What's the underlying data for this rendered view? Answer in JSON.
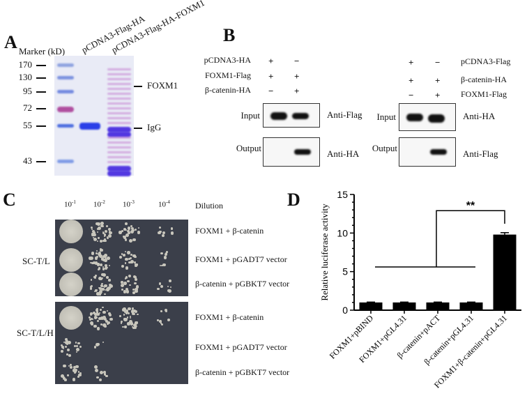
{
  "panels": {
    "a": {
      "label": "A",
      "marker_header": "Marker (kD)",
      "lanes": [
        "pCDNA3-Flag-HA",
        "pCDNA3-Flag-HA-FOXM1"
      ],
      "markers": [
        "170",
        "130",
        "95",
        "72",
        "55",
        "43"
      ],
      "bands": [
        "FOXM1",
        "IgG"
      ]
    },
    "b": {
      "label": "B",
      "left": {
        "rows": [
          {
            "name": "pCDNA3-HA",
            "lane1": "+",
            "lane2": "−"
          },
          {
            "name": "FOXM1-Flag",
            "lane1": "+",
            "lane2": "+"
          },
          {
            "name": "β-catenin-HA",
            "lane1": "−",
            "lane2": "+"
          }
        ],
        "input_label": "Input",
        "output_label": "Output",
        "input_antibody": "Anti-Flag",
        "output_antibody": "Anti-HA"
      },
      "right": {
        "rows": [
          {
            "name": "pCDNA3-Flag",
            "lane1": "+",
            "lane2": "−"
          },
          {
            "name": "β-catenin-HA",
            "lane1": "+",
            "lane2": "+"
          },
          {
            "name": "FOXM1-Flag",
            "lane1": "−",
            "lane2": "+"
          }
        ],
        "input_label": "Input",
        "output_label": "Output",
        "input_antibody": "Anti-HA",
        "output_antibody": "Anti-Flag"
      }
    },
    "c": {
      "label": "C",
      "dilutions": [
        "10",
        "10",
        "10",
        "10"
      ],
      "dilution_exponents": [
        "-1",
        "-2",
        "-3",
        "-4"
      ],
      "dilution_header": "Dilution",
      "plates": [
        {
          "medium": "SC-T/L",
          "rows": [
            {
              "name": "FOXM1 + β-catenin",
              "growth": [
                "confluent",
                "dense",
                "moderate",
                "sparse"
              ]
            },
            {
              "name": "FOXM1 + pGADT7 vector",
              "growth": [
                "confluent",
                "dense",
                "moderate",
                "sparse"
              ]
            },
            {
              "name": "β-catenin + pGBKT7 vector",
              "growth": [
                "confluent",
                "dense",
                "moderate",
                "sparse"
              ]
            }
          ]
        },
        {
          "medium": "SC-T/L/H",
          "rows": [
            {
              "name": "FOXM1 + β-catenin",
              "growth": [
                "confluent",
                "dense",
                "dense",
                "sparse"
              ]
            },
            {
              "name": "FOXM1 + pGADT7 vector",
              "growth": [
                "moderate",
                "few",
                "none",
                "none"
              ]
            },
            {
              "name": "β-catenin + pGBKT7 vector",
              "growth": [
                "moderate",
                "sparse",
                "none",
                "none"
              ]
            }
          ]
        }
      ]
    },
    "d": {
      "label": "D"
    }
  },
  "chart_data": {
    "type": "bar",
    "categories": [
      "FOXM1+pBIND",
      "FOXM1+pGL4.31",
      "β-catenin+pACT",
      "β-catenin+pGL4.31",
      "FOXM1+β-catenin+pGL4.31"
    ],
    "values": [
      1.0,
      1.0,
      1.0,
      1.0,
      9.8
    ],
    "errors": [
      0.05,
      0.05,
      0.05,
      0.05,
      0.25
    ],
    "ylabel": "Relative luciferase activity",
    "xlabel": "",
    "ylim": [
      0,
      15
    ],
    "yticks": [
      "0",
      "5",
      "10",
      "15"
    ],
    "bar_color": "#000000",
    "grid": false,
    "annotation": "**"
  }
}
